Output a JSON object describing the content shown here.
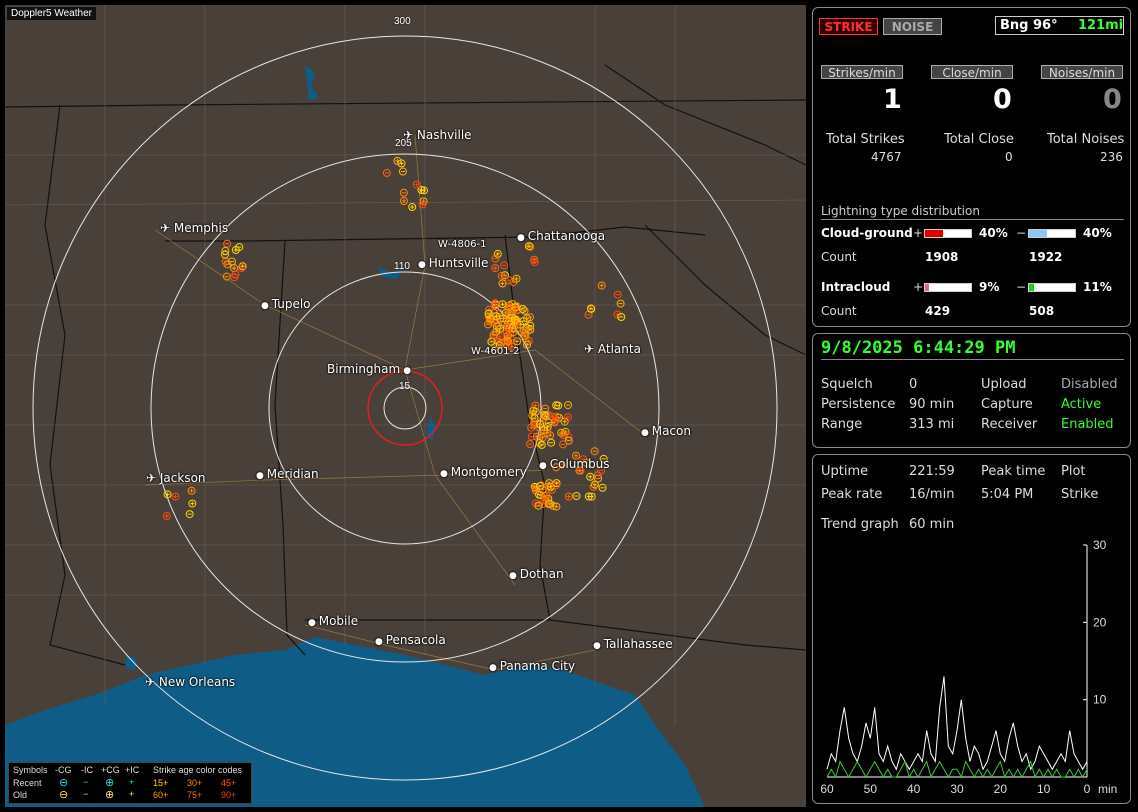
{
  "map": {
    "title_tag": "Doppler5 Weather",
    "ring_labels": [
      "300",
      "205",
      "110",
      "15"
    ],
    "cities": [
      {
        "name": "Nashville",
        "icon": "airport"
      },
      {
        "name": "Memphis",
        "icon": "airport"
      },
      {
        "name": "Chattanooga",
        "icon": "dot"
      },
      {
        "name": "Huntsville",
        "icon": "dot"
      },
      {
        "name": "Tupelo",
        "icon": "dot"
      },
      {
        "name": "Atlanta",
        "icon": "airport"
      },
      {
        "name": "Birmingham",
        "icon": "dot"
      },
      {
        "name": "Macon",
        "icon": "dot"
      },
      {
        "name": "Jackson",
        "icon": "airport"
      },
      {
        "name": "Meridian",
        "icon": "dot"
      },
      {
        "name": "Montgomery",
        "icon": "dot"
      },
      {
        "name": "Columbus",
        "icon": "dot"
      },
      {
        "name": "Dothan",
        "icon": "dot"
      },
      {
        "name": "Mobile",
        "icon": "dot"
      },
      {
        "name": "Pensacola",
        "icon": "dot"
      },
      {
        "name": "Tallahassee",
        "icon": "dot"
      },
      {
        "name": "Panama City",
        "icon": "dot"
      },
      {
        "name": "New Orleans",
        "icon": "airport"
      }
    ],
    "stations": [
      "W-4806-1",
      "W-4601-2"
    ],
    "legend": {
      "symbols_label": "Symbols",
      "col_neg_cg": "-CG",
      "col_neg_ic": "-IC",
      "col_pos_cg": "+CG",
      "col_pos_ic": "+IC",
      "age_title": "Strike age color codes",
      "row_recent": "Recent",
      "row_old": "Old",
      "ages_recent": [
        "15+",
        "30+",
        "45+"
      ],
      "ages_old": [
        "60+",
        "75+",
        "90+"
      ],
      "age_colors": [
        "#ffd700",
        "#ff8c00",
        "#ff5a00",
        "#ffe14d",
        "#ff9a1a",
        "#ff3c1a"
      ]
    }
  },
  "status": {
    "strike_btn": "STRIKE",
    "noise_btn": "NOISE",
    "bearing": "Bng 96°",
    "distance": "121mi",
    "strikes_per_min_label": "Strikes/min",
    "close_per_min_label": "Close/min",
    "noises_per_min_label": "Noises/min",
    "strikes_per_min": "1",
    "close_per_min": "0",
    "noises_per_min": "0",
    "total_strikes_label": "Total Strikes",
    "total_close_label": "Total Close",
    "total_noises_label": "Total Noises",
    "total_strikes": "4767",
    "total_close": "0",
    "total_noises": "236",
    "dist_title": "Lightning type distribution",
    "cg_label": "Cloud-ground",
    "ic_label": "Intracloud",
    "plus": "+",
    "minus": "−",
    "count_label": "Count",
    "cg_pos_pct": "40%",
    "cg_neg_pct": "40%",
    "cg_pos_count": "1908",
    "cg_neg_count": "1922",
    "ic_pos_pct": "9%",
    "ic_neg_pct": "11%",
    "ic_pos_count": "429",
    "ic_neg_count": "508",
    "cg_pos_fill": 0.4,
    "cg_neg_fill": 0.4,
    "ic_pos_fill": 0.09,
    "ic_neg_fill": 0.11,
    "colors": {
      "cg_pos": "#e00000",
      "cg_neg": "#8ec8f0",
      "ic_pos": "#e060a0",
      "ic_neg": "#20d020"
    }
  },
  "settings": {
    "datetime": "9/8/2025 6:44:29 PM",
    "squelch_label": "Squelch",
    "squelch": "0",
    "upload_label": "Upload",
    "upload": "Disabled",
    "persistence_label": "Persistence",
    "persistence": "90 min",
    "capture_label": "Capture",
    "capture": "Active",
    "range_label": "Range",
    "range": "313 mi",
    "receiver_label": "Receiver",
    "receiver": "Enabled"
  },
  "trend": {
    "uptime_label": "Uptime",
    "uptime": "221:59",
    "peak_time_label": "Peak time",
    "plot_label": "Plot",
    "peak_rate_label": "Peak rate",
    "peak_rate": "16/min",
    "peak_time": "5:04 PM",
    "plot": "Strike",
    "trend_label": "Trend graph",
    "trend_window": "60 min",
    "y_ticks": [
      "30",
      "20",
      "10"
    ],
    "x_ticks": [
      "60",
      "50",
      "40",
      "30",
      "20",
      "10",
      "0"
    ],
    "x_unit": "min"
  },
  "chart_data": {
    "type": "line",
    "x": [
      60,
      59,
      58,
      57,
      56,
      55,
      54,
      53,
      52,
      51,
      50,
      49,
      48,
      47,
      46,
      45,
      44,
      43,
      42,
      41,
      40,
      39,
      38,
      37,
      36,
      35,
      34,
      33,
      32,
      31,
      30,
      29,
      28,
      27,
      26,
      25,
      24,
      23,
      22,
      21,
      20,
      19,
      18,
      17,
      16,
      15,
      14,
      13,
      12,
      11,
      10,
      9,
      8,
      7,
      6,
      5,
      4,
      3,
      2,
      1,
      0
    ],
    "series": [
      {
        "values": [
          1,
          3,
          2,
          6,
          9,
          5,
          3,
          2,
          4,
          7,
          5,
          9,
          3,
          2,
          4,
          2,
          1,
          3,
          2,
          1,
          2,
          3,
          2,
          6,
          3,
          2,
          9,
          13,
          4,
          3,
          6,
          10,
          5,
          2,
          4,
          3,
          1,
          2,
          4,
          6,
          3,
          2,
          5,
          7,
          4,
          2,
          3,
          1,
          2,
          4,
          3,
          2,
          1,
          2,
          3,
          2,
          6,
          3,
          2,
          1,
          2
        ]
      },
      {
        "values": [
          0,
          1,
          0,
          2,
          1,
          0,
          1,
          2,
          1,
          0,
          1,
          2,
          1,
          0,
          1,
          0,
          0,
          1,
          2,
          0,
          1,
          0,
          1,
          2,
          0,
          1,
          2,
          1,
          0,
          1,
          1,
          0,
          2,
          1,
          0,
          1,
          0,
          1,
          0,
          1,
          2,
          0,
          1,
          0,
          1,
          0,
          1,
          2,
          0,
          1,
          0,
          1,
          0,
          1,
          0,
          0,
          1,
          0,
          1,
          0,
          1
        ]
      }
    ],
    "ylim": [
      0,
      30
    ],
    "xlim": [
      60,
      0
    ]
  }
}
